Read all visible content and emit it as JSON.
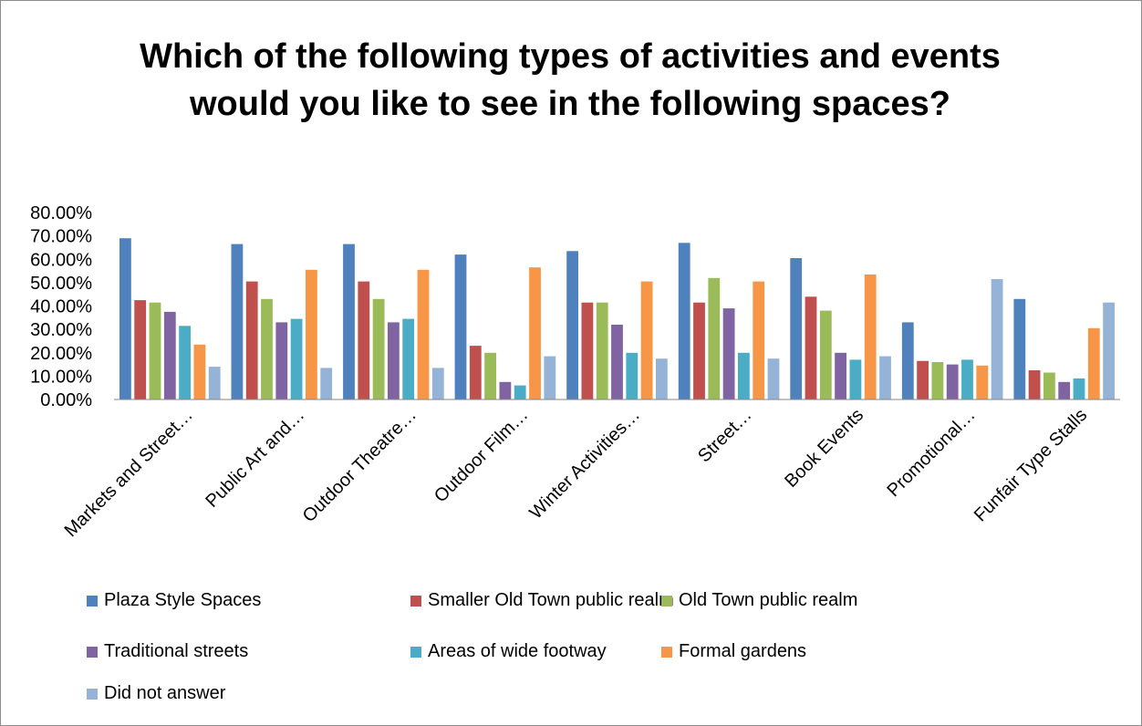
{
  "chart_data": {
    "type": "bar",
    "title": "Which of the following types of activities and events would you like to see in the following spaces?",
    "categories": [
      "Markets and Street…",
      "Public Art and…",
      "Outdoor Theatre…",
      "Outdoor Film…",
      "Winter Activities…",
      "Street…",
      "Book Events",
      "Promotional…",
      "Funfair Type Stalls"
    ],
    "ylim": [
      0,
      0.8
    ],
    "yticks": [
      "0.00%",
      "10.00%",
      "20.00%",
      "30.00%",
      "40.00%",
      "50.00%",
      "60.00%",
      "70.00%",
      "80.00%"
    ],
    "grid": false,
    "legend_position": "bottom",
    "series": [
      {
        "name": "Plaza Style Spaces",
        "color": "#4F81BD",
        "values": [
          0.69,
          0.665,
          0.665,
          0.62,
          0.635,
          0.67,
          0.605,
          0.33,
          0.43
        ]
      },
      {
        "name": "Smaller Old Town public realm",
        "color": "#C0504D",
        "values": [
          0.425,
          0.505,
          0.505,
          0.23,
          0.415,
          0.415,
          0.44,
          0.165,
          0.125
        ]
      },
      {
        "name": "Old Town public realm",
        "color": "#9BBB59",
        "values": [
          0.415,
          0.43,
          0.43,
          0.2,
          0.415,
          0.52,
          0.38,
          0.16,
          0.115
        ]
      },
      {
        "name": "Traditional streets",
        "color": "#8064A2",
        "values": [
          0.375,
          0.33,
          0.33,
          0.075,
          0.32,
          0.39,
          0.2,
          0.15,
          0.075
        ]
      },
      {
        "name": "Areas of wide footway",
        "color": "#4BACC6",
        "values": [
          0.315,
          0.345,
          0.345,
          0.06,
          0.2,
          0.2,
          0.17,
          0.17,
          0.09
        ]
      },
      {
        "name": "Formal gardens",
        "color": "#F79646",
        "values": [
          0.235,
          0.555,
          0.555,
          0.565,
          0.505,
          0.505,
          0.535,
          0.145,
          0.305
        ]
      },
      {
        "name": "Did not answer",
        "color": "#95B3D7",
        "values": [
          0.14,
          0.135,
          0.135,
          0.185,
          0.175,
          0.175,
          0.185,
          0.515,
          0.415
        ]
      }
    ]
  }
}
